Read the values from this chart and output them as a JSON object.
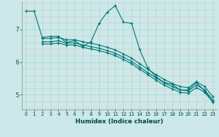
{
  "xlabel": "Humidex (Indice chaleur)",
  "bg_color": "#cce8e8",
  "grid_color_white": "#b8d8d8",
  "grid_color_pink": "#ddc8c8",
  "line_color": "#007878",
  "xlim": [
    -0.5,
    23.5
  ],
  "ylim": [
    4.55,
    7.85
  ],
  "yticks": [
    5,
    6,
    7
  ],
  "xticks": [
    0,
    1,
    2,
    3,
    4,
    5,
    6,
    7,
    8,
    9,
    10,
    11,
    12,
    13,
    14,
    15,
    16,
    17,
    18,
    19,
    20,
    21,
    22,
    23
  ],
  "line1_x": [
    0,
    1,
    2,
    3,
    4,
    5,
    6,
    7,
    8,
    9,
    10,
    11,
    12,
    13,
    14,
    15,
    16,
    17,
    18,
    19,
    20,
    21,
    22,
    23
  ],
  "line1_y": [
    7.55,
    7.55,
    6.75,
    6.78,
    6.78,
    6.6,
    6.65,
    6.48,
    6.62,
    7.18,
    7.52,
    7.72,
    7.22,
    7.18,
    6.38,
    5.82,
    5.55,
    5.38,
    5.32,
    5.15,
    5.15,
    5.38,
    5.12,
    4.78
  ],
  "line2_x": [
    2,
    3,
    4,
    5,
    6,
    7,
    8,
    9,
    10,
    11,
    12,
    13,
    14,
    15,
    16,
    17,
    18,
    19,
    20,
    21,
    22,
    23
  ],
  "line2_y": [
    6.55,
    6.55,
    6.58,
    6.52,
    6.52,
    6.45,
    6.4,
    6.35,
    6.28,
    6.2,
    6.08,
    5.95,
    5.78,
    5.62,
    5.45,
    5.3,
    5.18,
    5.08,
    5.05,
    5.22,
    5.08,
    4.78
  ],
  "line3_x": [
    2,
    3,
    4,
    5,
    6,
    7,
    8,
    9,
    10,
    11,
    12,
    13,
    14,
    15,
    16,
    17,
    18,
    19,
    20,
    21,
    22,
    23
  ],
  "line3_y": [
    6.62,
    6.62,
    6.65,
    6.58,
    6.58,
    6.52,
    6.47,
    6.42,
    6.35,
    6.27,
    6.15,
    6.02,
    5.85,
    5.68,
    5.52,
    5.37,
    5.25,
    5.15,
    5.12,
    5.3,
    5.15,
    4.85
  ],
  "line4_x": [
    2,
    3,
    4,
    5,
    6,
    7,
    8,
    9,
    10,
    11,
    12,
    13,
    14,
    15,
    16,
    17,
    18,
    19,
    20,
    21,
    22,
    23
  ],
  "line4_y": [
    6.72,
    6.72,
    6.75,
    6.68,
    6.68,
    6.62,
    6.57,
    6.52,
    6.45,
    6.37,
    6.25,
    6.12,
    5.95,
    5.78,
    5.62,
    5.47,
    5.35,
    5.25,
    5.22,
    5.4,
    5.25,
    4.95
  ]
}
